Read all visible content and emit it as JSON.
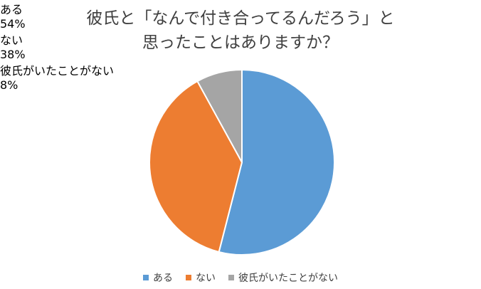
{
  "chart_data": {
    "type": "pie",
    "title": [
      "彼氏と「なんで付き合ってるんだろう」と",
      "思ったことはありますか？"
    ],
    "categories": [
      "ある",
      "ない",
      "彼氏がいたことがない"
    ],
    "values": [
      54,
      38,
      8
    ],
    "value_labels": [
      "54%",
      "38%",
      "8%"
    ],
    "colors": [
      "#5b9bd5",
      "#ed7d31",
      "#a5a5a5"
    ],
    "legend": "bottom"
  }
}
